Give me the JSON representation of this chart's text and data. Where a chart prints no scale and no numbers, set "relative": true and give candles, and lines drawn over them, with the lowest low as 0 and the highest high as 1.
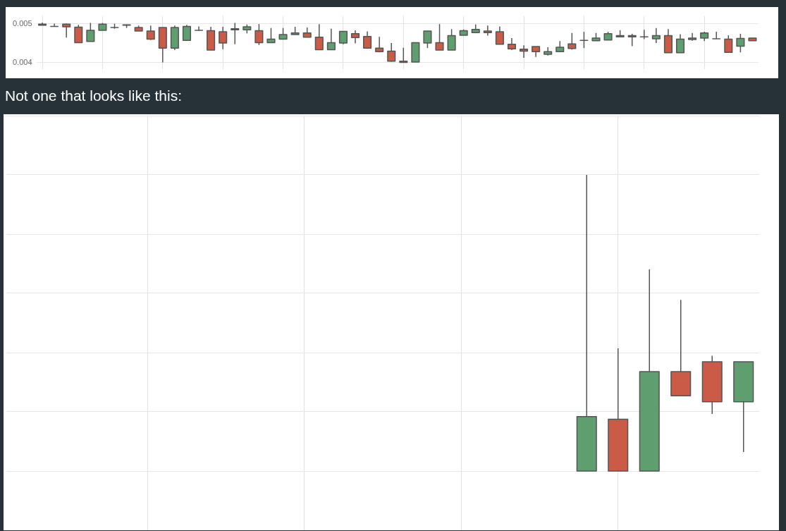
{
  "chart_data": [
    {
      "type": "candlestick",
      "categories": [
        null,
        null,
        null,
        null,
        null,
        null,
        null,
        null,
        null,
        null,
        null,
        null,
        null,
        null,
        null,
        null,
        null,
        null,
        null,
        null,
        null,
        null,
        null,
        null,
        null,
        null,
        null,
        null,
        null,
        null,
        null,
        null,
        null,
        null,
        null,
        null,
        null,
        null,
        null,
        null,
        null,
        null,
        null,
        null,
        null,
        null,
        null,
        null,
        null,
        null,
        null,
        null,
        null,
        null,
        null,
        null,
        null,
        null,
        null,
        null
      ],
      "ohlc": [
        [
          0.00496,
          0.00503,
          0.00496,
          0.00499
        ],
        [
          0.00493,
          0.005,
          0.00492,
          0.00493
        ],
        [
          0.00499,
          0.005,
          0.00464,
          0.00492
        ],
        [
          0.00491,
          0.00497,
          0.00451,
          0.00451
        ],
        [
          0.00454,
          0.00502,
          0.00454,
          0.00483
        ],
        [
          0.00483,
          0.00502,
          0.00483,
          0.00499
        ],
        [
          0.0049,
          0.005,
          0.00487,
          0.0049
        ],
        [
          0.00497,
          0.00498,
          0.00489,
          0.00496
        ],
        [
          0.0049,
          0.00495,
          0.00481,
          0.00481
        ],
        [
          0.00481,
          0.00495,
          0.00458,
          0.0046
        ],
        [
          0.0049,
          0.0049,
          0.004,
          0.00437
        ],
        [
          0.00437,
          0.00495,
          0.00432,
          0.0049
        ],
        [
          0.00457,
          0.00497,
          0.00457,
          0.00493
        ],
        [
          0.00483,
          0.00493,
          0.00482,
          0.00483
        ],
        [
          0.00482,
          0.00492,
          0.00432,
          0.00432
        ],
        [
          0.00479,
          0.00492,
          0.00434,
          0.0045
        ],
        [
          0.00487,
          0.00502,
          0.00447,
          0.00484
        ],
        [
          0.00484,
          0.00498,
          0.00475,
          0.00492
        ],
        [
          0.00482,
          0.00499,
          0.00445,
          0.00451
        ],
        [
          0.00451,
          0.00489,
          0.00451,
          0.0046
        ],
        [
          0.0046,
          0.00489,
          0.0046,
          0.00472
        ],
        [
          0.00472,
          0.00492,
          0.00472,
          0.00476
        ],
        [
          0.00476,
          0.0049,
          0.00465,
          0.00465
        ],
        [
          0.00465,
          0.00499,
          0.00433,
          0.00433
        ],
        [
          0.00433,
          0.00487,
          0.00433,
          0.00451
        ],
        [
          0.0045,
          0.0048,
          0.00447,
          0.0048
        ],
        [
          0.00474,
          0.00483,
          0.00449,
          0.00464
        ],
        [
          0.00467,
          0.0048,
          0.00437,
          0.00437
        ],
        [
          0.00437,
          0.00466,
          0.00426,
          0.00428
        ],
        [
          0.00429,
          0.0045,
          0.00402,
          0.00403
        ],
        [
          0.00403,
          0.00438,
          0.004,
          0.004
        ],
        [
          0.00401,
          0.00452,
          0.00401,
          0.00451
        ],
        [
          0.0045,
          0.00481,
          0.00437,
          0.00481
        ],
        [
          0.00451,
          0.00499,
          0.00432,
          0.00432
        ],
        [
          0.00432,
          0.00486,
          0.00432,
          0.00469
        ],
        [
          0.0047,
          0.00485,
          0.0047,
          0.00482
        ],
        [
          0.00477,
          0.00498,
          0.00477,
          0.00485
        ],
        [
          0.00481,
          0.00495,
          0.00469,
          0.00477
        ],
        [
          0.00479,
          0.00493,
          0.00447,
          0.00447
        ],
        [
          0.00447,
          0.00463,
          0.00432,
          0.00435
        ],
        [
          0.00434,
          0.00444,
          0.00412,
          0.00429
        ],
        [
          0.00441,
          0.00441,
          0.00414,
          0.00428
        ],
        [
          0.00421,
          0.00439,
          0.00418,
          0.00428
        ],
        [
          0.00428,
          0.00455,
          0.00428,
          0.00439
        ],
        [
          0.00448,
          0.00476,
          0.00433,
          0.00436
        ],
        [
          0.00457,
          0.00479,
          0.00437,
          0.00457
        ],
        [
          0.00456,
          0.00476,
          0.00456,
          0.00463
        ],
        [
          0.00458,
          0.00479,
          0.00458,
          0.00474
        ],
        [
          0.00466,
          0.00483,
          0.00466,
          0.00469
        ],
        [
          0.00469,
          0.00474,
          0.00442,
          0.00466
        ],
        [
          0.00466,
          0.00484,
          0.0046,
          0.00466
        ],
        [
          0.00461,
          0.00489,
          0.0045,
          0.00469
        ],
        [
          0.00469,
          0.00486,
          0.00425,
          0.00425
        ],
        [
          0.00425,
          0.00473,
          0.00425,
          0.0046
        ],
        [
          0.00459,
          0.00476,
          0.00456,
          0.00463
        ],
        [
          0.00463,
          0.00479,
          0.00455,
          0.00476
        ],
        [
          0.00461,
          0.00479,
          0.00461,
          0.00461
        ],
        [
          0.0046,
          0.0047,
          0.00426,
          0.00426
        ],
        [
          0.00442,
          0.00474,
          0.00426,
          0.00462
        ],
        [
          0.00463,
          0.00463,
          0.00456,
          0.00456
        ]
      ],
      "colors": [
        "#5f9e6e",
        "#555555",
        "#c95b47",
        "#c95b47",
        "#5f9e6e",
        "#5f9e6e",
        "#555555",
        "#c95b47",
        "#c95b47",
        "#c95b47",
        "#c95b47",
        "#5f9e6e",
        "#5f9e6e",
        "#555555",
        "#c95b47",
        "#c95b47",
        "#c95b47",
        "#5f9e6e",
        "#c95b47",
        "#5f9e6e",
        "#5f9e6e",
        "#5f9e6e",
        "#c95b47",
        "#c95b47",
        "#5f9e6e",
        "#5f9e6e",
        "#c95b47",
        "#c95b47",
        "#c95b47",
        "#c95b47",
        "#c95b47",
        "#5f9e6e",
        "#5f9e6e",
        "#c95b47",
        "#5f9e6e",
        "#5f9e6e",
        "#5f9e6e",
        "#c95b47",
        "#c95b47",
        "#c95b47",
        "#c95b47",
        "#c95b47",
        "#5f9e6e",
        "#5f9e6e",
        "#c95b47",
        "#555555",
        "#5f9e6e",
        "#5f9e6e",
        "#5f9e6e",
        "#c95b47",
        "#555555",
        "#5f9e6e",
        "#c95b47",
        "#5f9e6e",
        "#5f9e6e",
        "#5f9e6e",
        "#555555",
        "#c95b47",
        "#5f9e6e",
        "#c95b47"
      ],
      "ylim": [
        0.00382,
        0.0052
      ],
      "yticks": [
        0.004,
        0.005
      ],
      "grid": true
    },
    {
      "type": "candlestick",
      "title": "Not one that looks like this:",
      "categories": [
        null,
        null,
        null,
        null,
        null,
        null,
        null,
        null,
        null,
        null,
        null,
        null,
        null,
        null,
        null,
        null,
        null,
        null,
        null,
        null,
        null,
        null,
        null,
        null
      ],
      "ohlc": [
        null,
        null,
        null,
        null,
        null,
        null,
        null,
        null,
        null,
        null,
        null,
        null,
        null,
        null,
        null,
        null,
        null,
        null,
        [
          0,
          1,
          0,
          0.184
        ],
        [
          0.175,
          0.414,
          0,
          0
        ],
        [
          0,
          0.681,
          0,
          0.336
        ],
        [
          0.336,
          0.578,
          0.254,
          0.254
        ],
        [
          0.369,
          0.389,
          0.193,
          0.234
        ],
        [
          0.234,
          0.369,
          0.064,
          0.369
        ]
      ],
      "colors": [
        null,
        null,
        null,
        null,
        null,
        null,
        null,
        null,
        null,
        null,
        null,
        null,
        null,
        null,
        null,
        null,
        null,
        null,
        "#5f9e6e",
        "#c95b47",
        "#5f9e6e",
        "#c95b47",
        "#c95b47",
        "#5f9e6e"
      ],
      "relative": true,
      "grid": true
    }
  ]
}
